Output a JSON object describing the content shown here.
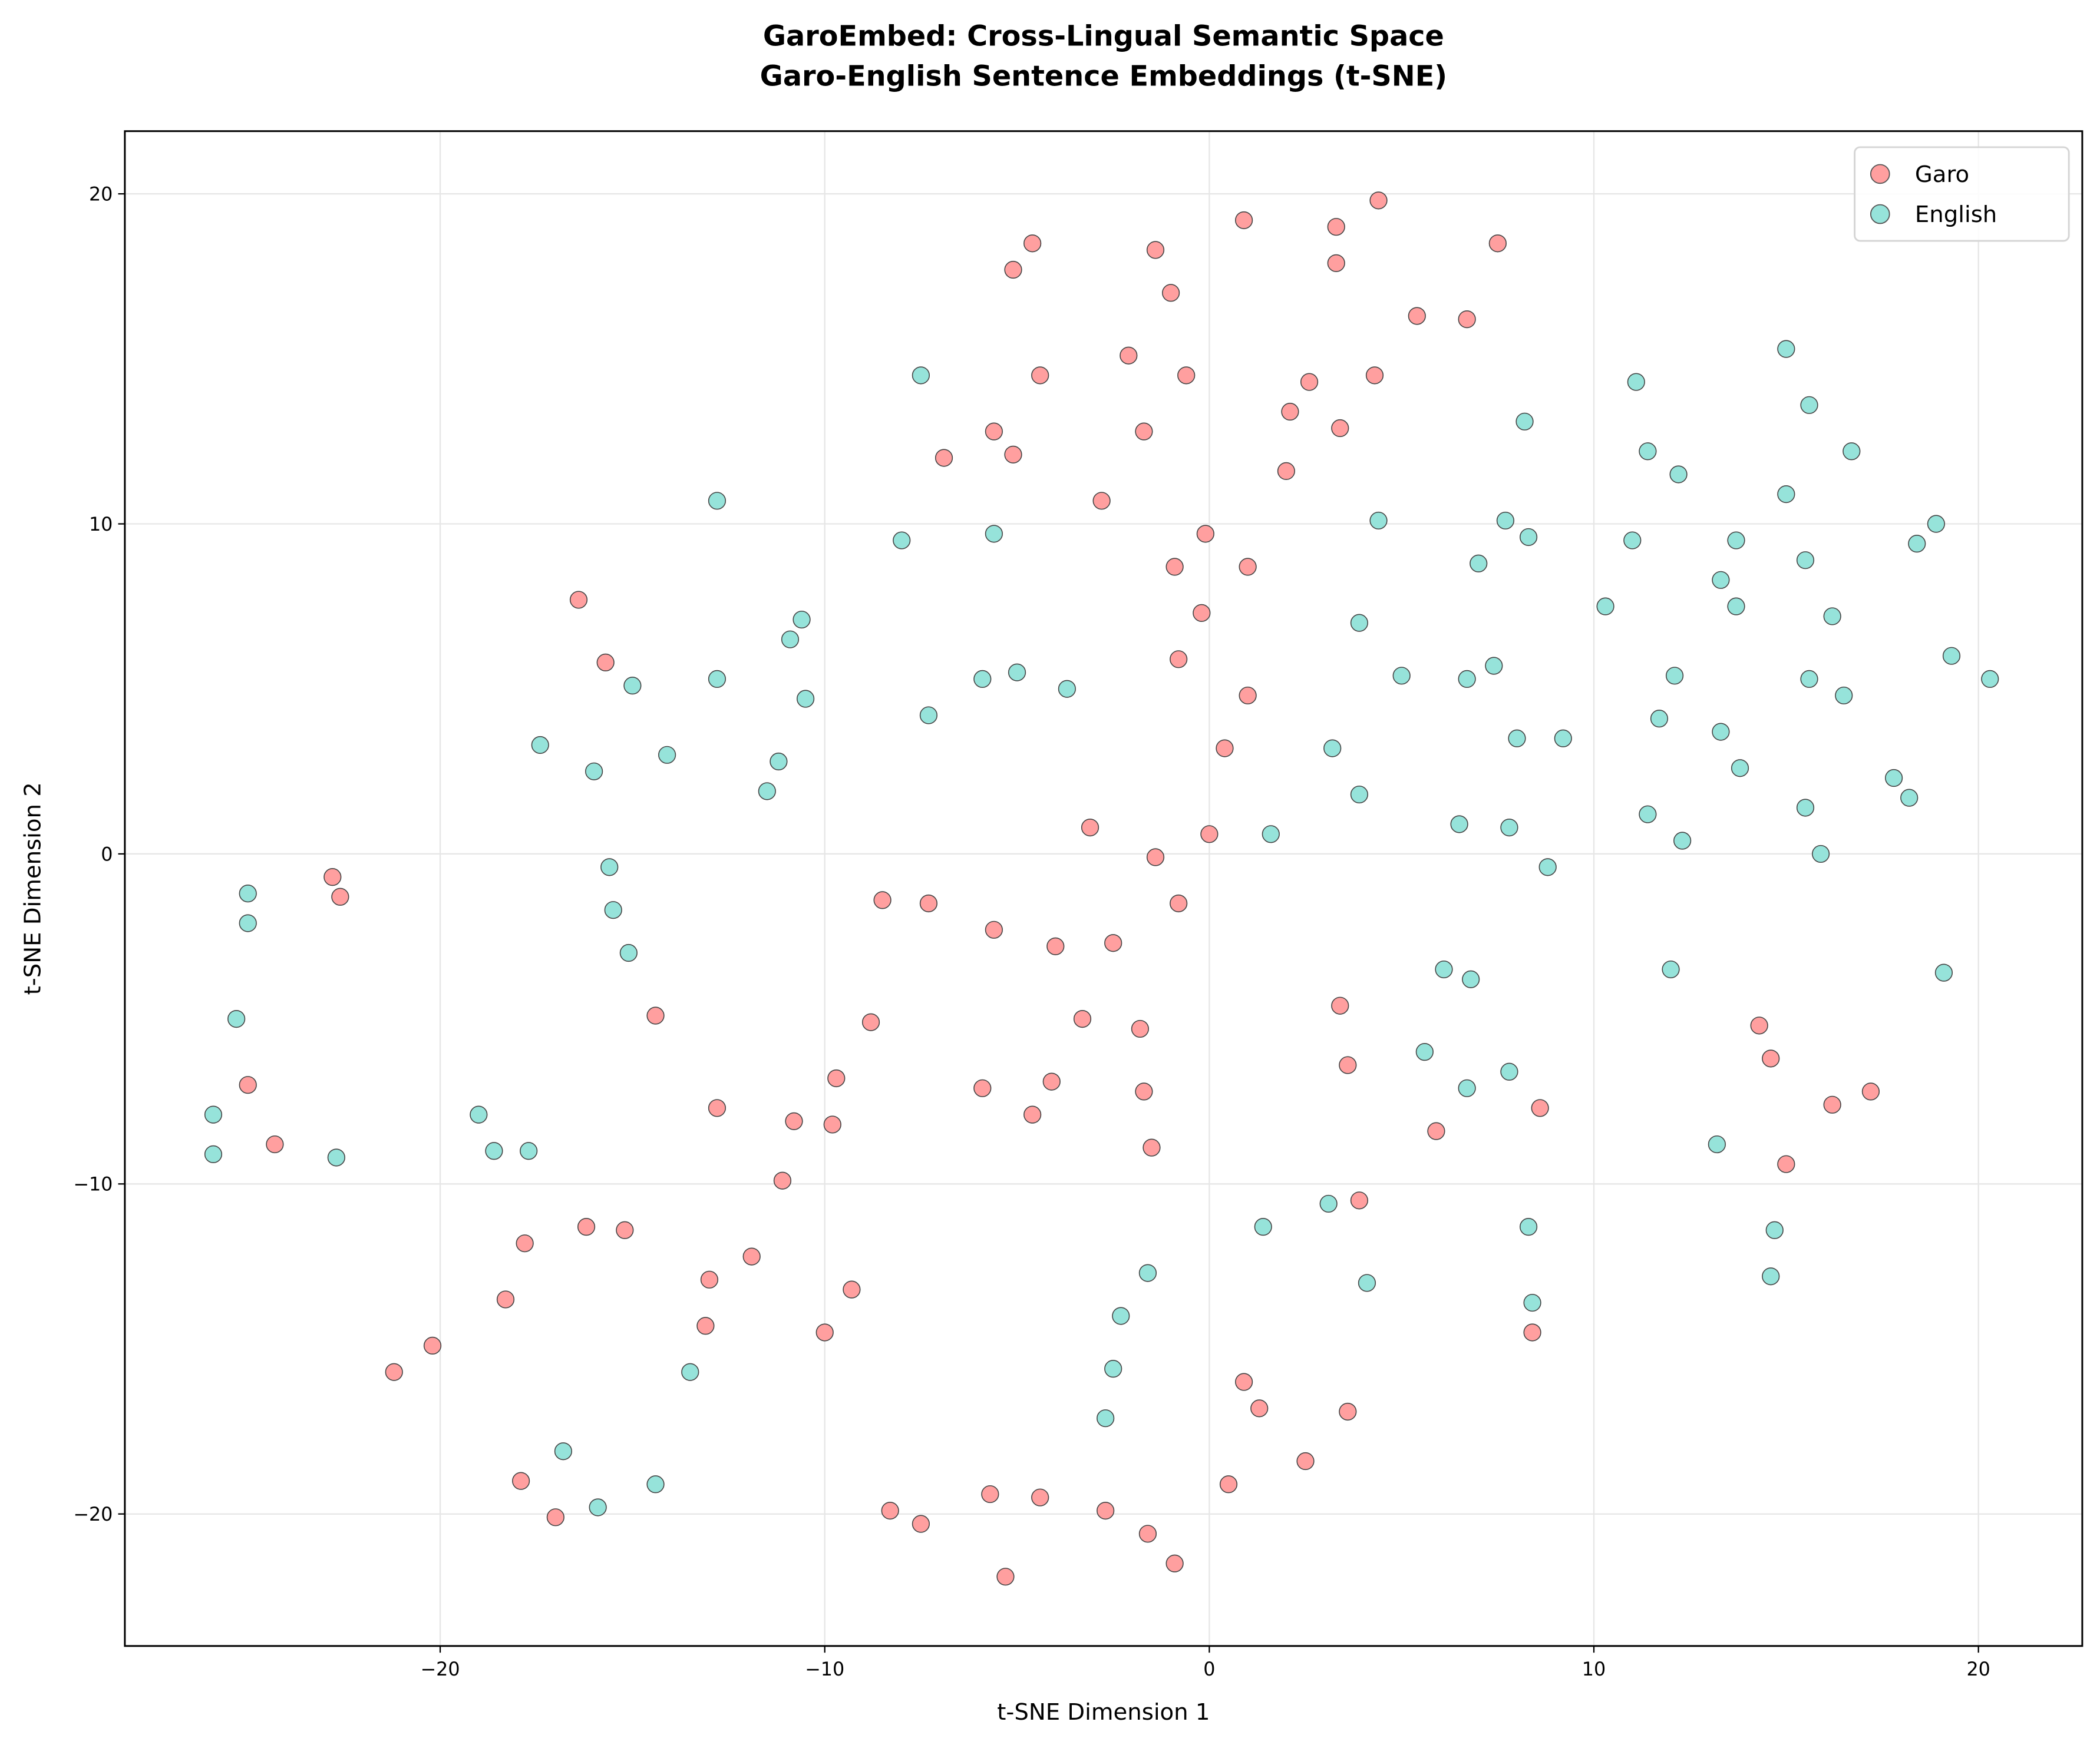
{
  "chart_data": {
    "type": "scatter",
    "title": "GaroEmbed: Cross-Lingual Semantic Space",
    "subtitle": "Garo-English Sentence Embeddings (t-SNE)",
    "xlabel": "t-SNE Dimension 1",
    "ylabel": "t-SNE Dimension 2",
    "xlim": [
      -28.2,
      22.7
    ],
    "ylim": [
      -24.0,
      21.9
    ],
    "xticks": [
      -20,
      -10,
      0,
      10,
      20
    ],
    "yticks": [
      -20,
      -10,
      0,
      10,
      20
    ],
    "xtick_labels": [
      "−20",
      "−10",
      "0",
      "10",
      "20"
    ],
    "ytick_labels": [
      "−20",
      "−10",
      "0",
      "10",
      "20"
    ],
    "grid": true,
    "legend_position": "top-right",
    "series": [
      {
        "name": "Garo",
        "color": "#ff9f9f",
        "points": [
          [
            4.4,
            19.8
          ],
          [
            0.9,
            19.2
          ],
          [
            3.3,
            19.0
          ],
          [
            7.5,
            18.5
          ],
          [
            -4.6,
            18.5
          ],
          [
            -1.4,
            18.3
          ],
          [
            3.3,
            17.9
          ],
          [
            -5.1,
            17.7
          ],
          [
            -1.0,
            17.0
          ],
          [
            5.4,
            16.3
          ],
          [
            6.7,
            16.2
          ],
          [
            -2.1,
            15.1
          ],
          [
            -4.4,
            14.5
          ],
          [
            -0.6,
            14.5
          ],
          [
            2.6,
            14.3
          ],
          [
            4.3,
            14.5
          ],
          [
            2.1,
            13.4
          ],
          [
            3.4,
            12.9
          ],
          [
            -5.6,
            12.8
          ],
          [
            -1.7,
            12.8
          ],
          [
            -5.1,
            12.1
          ],
          [
            -6.9,
            12.0
          ],
          [
            2.0,
            11.6
          ],
          [
            -2.8,
            10.7
          ],
          [
            -0.1,
            9.7
          ],
          [
            -0.9,
            8.7
          ],
          [
            1.0,
            8.7
          ],
          [
            -16.4,
            7.7
          ],
          [
            -0.2,
            7.3
          ],
          [
            -15.7,
            5.8
          ],
          [
            -0.8,
            5.9
          ],
          [
            1.0,
            4.8
          ],
          [
            0.4,
            3.2
          ],
          [
            -3.1,
            0.8
          ],
          [
            0.0,
            0.6
          ],
          [
            -1.4,
            -0.1
          ],
          [
            -22.8,
            -0.7
          ],
          [
            -22.6,
            -1.3
          ],
          [
            -8.5,
            -1.4
          ],
          [
            -7.3,
            -1.5
          ],
          [
            -0.8,
            -1.5
          ],
          [
            -5.6,
            -2.3
          ],
          [
            -4.0,
            -2.8
          ],
          [
            -2.5,
            -2.7
          ],
          [
            3.4,
            -4.6
          ],
          [
            -3.3,
            -5.0
          ],
          [
            -8.8,
            -5.1
          ],
          [
            -14.4,
            -4.9
          ],
          [
            -1.8,
            -5.3
          ],
          [
            3.6,
            -6.4
          ],
          [
            14.3,
            -5.2
          ],
          [
            14.6,
            -6.2
          ],
          [
            -9.7,
            -6.8
          ],
          [
            -4.1,
            -6.9
          ],
          [
            -5.9,
            -7.1
          ],
          [
            -1.7,
            -7.2
          ],
          [
            -25.0,
            -7.0
          ],
          [
            -4.6,
            -7.9
          ],
          [
            -12.8,
            -7.7
          ],
          [
            8.6,
            -7.7
          ],
          [
            16.2,
            -7.6
          ],
          [
            17.2,
            -7.2
          ],
          [
            -10.8,
            -8.1
          ],
          [
            -9.8,
            -8.2
          ],
          [
            -24.3,
            -8.8
          ],
          [
            -1.5,
            -8.9
          ],
          [
            5.9,
            -8.4
          ],
          [
            15.0,
            -9.4
          ],
          [
            -11.1,
            -9.9
          ],
          [
            3.9,
            -10.5
          ],
          [
            -16.2,
            -11.3
          ],
          [
            -15.2,
            -11.4
          ],
          [
            -17.8,
            -11.8
          ],
          [
            -11.9,
            -12.2
          ],
          [
            -13.0,
            -12.9
          ],
          [
            -9.3,
            -13.2
          ],
          [
            -18.3,
            -13.5
          ],
          [
            -13.1,
            -14.3
          ],
          [
            -10.0,
            -14.5
          ],
          [
            8.4,
            -14.5
          ],
          [
            -20.2,
            -14.9
          ],
          [
            -21.2,
            -15.7
          ],
          [
            0.9,
            -16.0
          ],
          [
            1.3,
            -16.8
          ],
          [
            3.6,
            -16.9
          ],
          [
            2.5,
            -18.4
          ],
          [
            -17.9,
            -19.0
          ],
          [
            -17.0,
            -20.1
          ],
          [
            0.5,
            -19.1
          ],
          [
            -5.7,
            -19.4
          ],
          [
            -4.4,
            -19.5
          ],
          [
            -8.3,
            -19.9
          ],
          [
            -7.5,
            -20.3
          ],
          [
            -2.7,
            -19.9
          ],
          [
            -1.6,
            -20.6
          ],
          [
            -0.9,
            -21.5
          ],
          [
            -5.3,
            -21.9
          ]
        ]
      },
      {
        "name": "English",
        "color": "#96e3da",
        "points": [
          [
            15.0,
            15.3
          ],
          [
            11.1,
            14.3
          ],
          [
            15.6,
            13.6
          ],
          [
            -7.5,
            14.5
          ],
          [
            8.2,
            13.1
          ],
          [
            11.4,
            12.2
          ],
          [
            16.7,
            12.2
          ],
          [
            12.2,
            11.5
          ],
          [
            15.0,
            10.9
          ],
          [
            -12.8,
            10.7
          ],
          [
            4.4,
            10.1
          ],
          [
            7.7,
            10.1
          ],
          [
            18.9,
            10.0
          ],
          [
            -8.0,
            9.5
          ],
          [
            -5.6,
            9.7
          ],
          [
            8.3,
            9.6
          ],
          [
            11.0,
            9.5
          ],
          [
            13.7,
            9.5
          ],
          [
            18.4,
            9.4
          ],
          [
            15.5,
            8.9
          ],
          [
            7.0,
            8.8
          ],
          [
            13.3,
            8.3
          ],
          [
            13.7,
            7.5
          ],
          [
            -10.6,
            7.1
          ],
          [
            10.3,
            7.5
          ],
          [
            16.2,
            7.2
          ],
          [
            3.9,
            7.0
          ],
          [
            -10.9,
            6.5
          ],
          [
            19.3,
            6.0
          ],
          [
            7.4,
            5.7
          ],
          [
            -12.8,
            5.3
          ],
          [
            -15.0,
            5.1
          ],
          [
            -5.9,
            5.3
          ],
          [
            -5.0,
            5.5
          ],
          [
            5.0,
            5.4
          ],
          [
            6.7,
            5.3
          ],
          [
            12.1,
            5.4
          ],
          [
            15.6,
            5.3
          ],
          [
            20.3,
            5.3
          ],
          [
            -10.5,
            4.7
          ],
          [
            -3.7,
            5.0
          ],
          [
            16.5,
            4.8
          ],
          [
            -7.3,
            4.2
          ],
          [
            11.7,
            4.1
          ],
          [
            3.2,
            3.2
          ],
          [
            13.3,
            3.7
          ],
          [
            8.0,
            3.5
          ],
          [
            9.2,
            3.5
          ],
          [
            -17.4,
            3.3
          ],
          [
            -14.1,
            3.0
          ],
          [
            -11.2,
            2.8
          ],
          [
            -16.0,
            2.5
          ],
          [
            13.8,
            2.6
          ],
          [
            17.8,
            2.3
          ],
          [
            18.2,
            1.7
          ],
          [
            -11.5,
            1.9
          ],
          [
            3.9,
            1.8
          ],
          [
            11.4,
            1.2
          ],
          [
            15.5,
            1.4
          ],
          [
            1.6,
            0.6
          ],
          [
            6.5,
            0.9
          ],
          [
            7.8,
            0.8
          ],
          [
            12.3,
            0.4
          ],
          [
            15.9,
            0.0
          ],
          [
            8.8,
            -0.4
          ],
          [
            -25.0,
            -1.2
          ],
          [
            -15.6,
            -0.4
          ],
          [
            -15.5,
            -1.7
          ],
          [
            -25.0,
            -2.1
          ],
          [
            -15.1,
            -3.0
          ],
          [
            6.1,
            -3.5
          ],
          [
            6.8,
            -3.8
          ],
          [
            12.0,
            -3.5
          ],
          [
            19.1,
            -3.6
          ],
          [
            -25.3,
            -5.0
          ],
          [
            5.6,
            -6.0
          ],
          [
            7.8,
            -6.6
          ],
          [
            6.7,
            -7.1
          ],
          [
            -25.9,
            -7.9
          ],
          [
            -19.0,
            -7.9
          ],
          [
            -18.6,
            -9.0
          ],
          [
            -17.7,
            -9.0
          ],
          [
            -25.9,
            -9.1
          ],
          [
            -22.7,
            -9.2
          ],
          [
            13.2,
            -8.8
          ],
          [
            3.1,
            -10.6
          ],
          [
            1.4,
            -11.3
          ],
          [
            8.3,
            -11.3
          ],
          [
            14.7,
            -11.4
          ],
          [
            -1.6,
            -12.7
          ],
          [
            4.1,
            -13.0
          ],
          [
            14.6,
            -12.8
          ],
          [
            8.4,
            -13.6
          ],
          [
            -2.3,
            -14.0
          ],
          [
            -13.5,
            -15.7
          ],
          [
            -2.5,
            -15.6
          ],
          [
            -2.7,
            -17.1
          ],
          [
            -16.8,
            -18.1
          ],
          [
            -14.4,
            -19.1
          ],
          [
            -15.9,
            -19.8
          ]
        ]
      }
    ]
  }
}
